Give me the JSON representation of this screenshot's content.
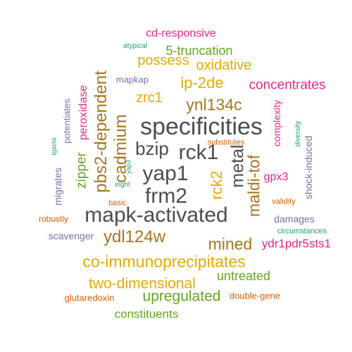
{
  "colors": {
    "dark": "#4d4d4d",
    "brown": "#a6761d",
    "orange": "#e6ab02",
    "green": "#66a61e",
    "pink": "#e7298a",
    "purple": "#7570b3",
    "red": "#d95f02",
    "teal": "#1b9e77"
  },
  "words": [
    {
      "text": "specificities",
      "color": "dark",
      "rot": false
    },
    {
      "text": "mapk-activated",
      "color": "dark",
      "rot": false
    },
    {
      "text": "frm2",
      "color": "dark",
      "rot": false
    },
    {
      "text": "yap1",
      "color": "dark",
      "rot": false
    },
    {
      "text": "rck1",
      "color": "dark",
      "rot": false
    },
    {
      "text": "bzip",
      "color": "dark",
      "rot": false
    },
    {
      "text": "metal",
      "color": "dark",
      "rot": true
    },
    {
      "text": "co-immunoprecipitates",
      "color": "orange",
      "rot": false
    },
    {
      "text": "cadmium",
      "color": "brown",
      "rot": true
    },
    {
      "text": "pbs2-dependent",
      "color": "brown",
      "rot": true
    },
    {
      "text": "maldi-tof",
      "color": "brown",
      "rot": true
    },
    {
      "text": "ydl124w",
      "color": "brown",
      "rot": false
    },
    {
      "text": "mined",
      "color": "brown",
      "rot": false
    },
    {
      "text": "ynl134c",
      "color": "brown",
      "rot": false
    },
    {
      "text": "two-dimensional",
      "color": "orange",
      "rot": false
    },
    {
      "text": "upregulated",
      "color": "green",
      "rot": false
    },
    {
      "text": "ip-2de",
      "color": "orange",
      "rot": false
    },
    {
      "text": "rck2",
      "color": "orange",
      "rot": true
    },
    {
      "text": "oxidative",
      "color": "orange",
      "rot": false
    },
    {
      "text": "possess",
      "color": "orange",
      "rot": false
    },
    {
      "text": "zrc1",
      "color": "orange",
      "rot": false
    },
    {
      "text": "concentrates",
      "color": "pink",
      "rot": false
    },
    {
      "text": "zipper",
      "color": "green",
      "rot": true
    },
    {
      "text": "peroxidase",
      "color": "pink",
      "rot": true
    },
    {
      "text": "5-truncation",
      "color": "green",
      "rot": false
    },
    {
      "text": "ydr1pdr5sts1",
      "color": "pink",
      "rot": false
    },
    {
      "text": "untreated",
      "color": "green",
      "rot": false
    },
    {
      "text": "constituents",
      "color": "green",
      "rot": false
    },
    {
      "text": "cd-responsive",
      "color": "pink",
      "rot": false
    },
    {
      "text": "gpx3",
      "color": "pink",
      "rot": false
    },
    {
      "text": "complexity",
      "color": "pink",
      "rot": true
    },
    {
      "text": "damages",
      "color": "purple",
      "rot": false
    },
    {
      "text": "shock-induced",
      "color": "purple",
      "rot": true
    },
    {
      "text": "scavenger",
      "color": "purple",
      "rot": false
    },
    {
      "text": "potentiates",
      "color": "purple",
      "rot": true
    },
    {
      "text": "migrates",
      "color": "purple",
      "rot": true
    },
    {
      "text": "mapkap",
      "color": "purple",
      "rot": false
    },
    {
      "text": "glutaredoxin",
      "color": "red",
      "rot": false
    },
    {
      "text": "double-gene",
      "color": "red",
      "rot": false
    },
    {
      "text": "robustly",
      "color": "red",
      "rot": false
    },
    {
      "text": "substitutes",
      "color": "red",
      "rot": false
    },
    {
      "text": "validity",
      "color": "red",
      "rot": false
    },
    {
      "text": "basic",
      "color": "red",
      "rot": false
    },
    {
      "text": "circumstances",
      "color": "teal",
      "rot": false
    },
    {
      "text": "diversity",
      "color": "teal",
      "rot": true
    },
    {
      "text": "atypical",
      "color": "teal",
      "rot": false
    },
    {
      "text": "tgacta",
      "color": "teal",
      "rot": true
    },
    {
      "text": "yap3",
      "color": "teal",
      "rot": true
    },
    {
      "text": "eight",
      "color": "teal",
      "rot": false
    }
  ]
}
